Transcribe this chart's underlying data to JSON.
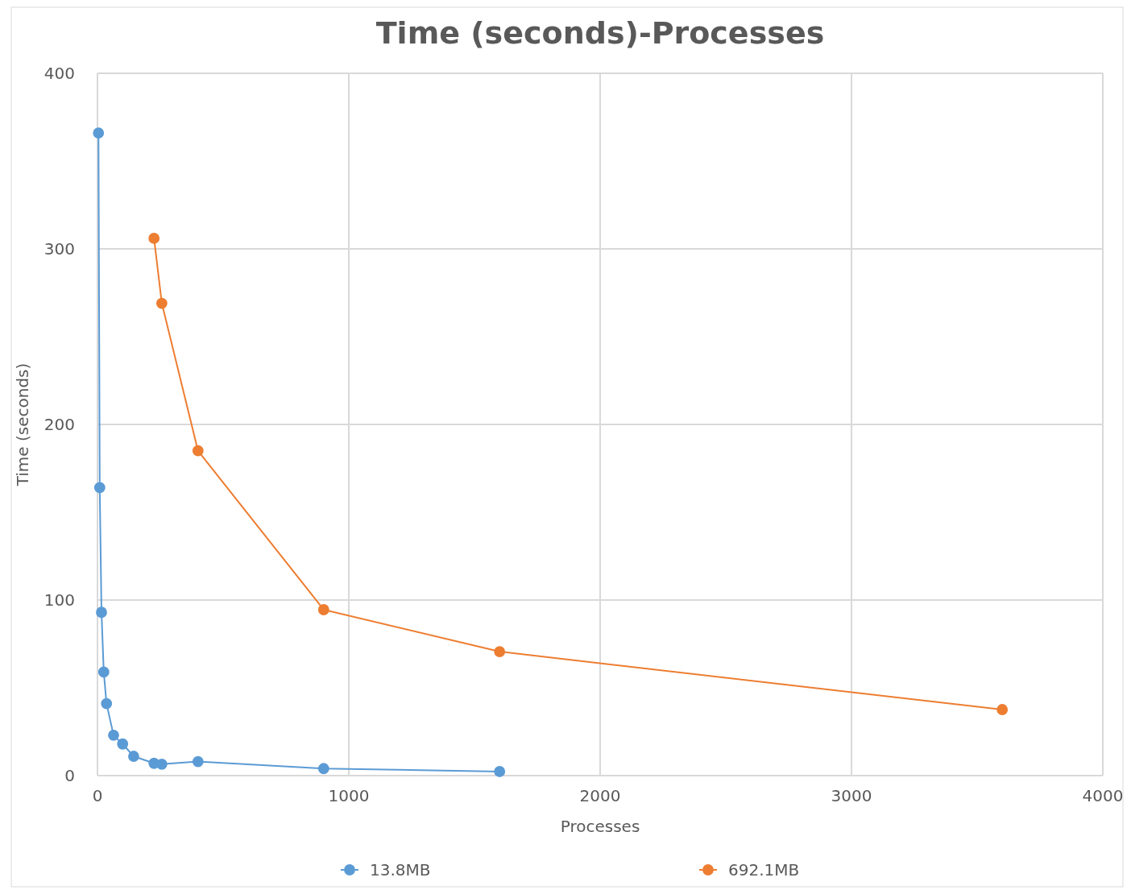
{
  "chart_data": {
    "type": "line",
    "title": "Time (seconds)-Processes",
    "xlabel": "Processes",
    "ylabel": "Time (seconds)",
    "xlim": [
      0,
      4000
    ],
    "xticks": [
      0,
      1000,
      2000,
      3000,
      4000
    ],
    "ylim": [
      0,
      400
    ],
    "yticks": [
      0,
      100,
      200,
      300,
      400
    ],
    "grid": true,
    "legend": "bottom",
    "marker": "circle",
    "series": [
      {
        "name": "13.8MB",
        "color": "#5b9bd5",
        "x": [
          4,
          9,
          16,
          25,
          36,
          64,
          100,
          144,
          225,
          256,
          400,
          900,
          1600
        ],
        "values": [
          366,
          164,
          93,
          59,
          41,
          23,
          18,
          11,
          7,
          6.5,
          8,
          4,
          2.3
        ]
      },
      {
        "name": "692.1MB",
        "color": "#ed7d31",
        "x": [
          225,
          256,
          400,
          900,
          1600,
          3600
        ],
        "values": [
          306,
          269,
          185,
          94.5,
          70.6,
          37.6
        ]
      }
    ]
  }
}
